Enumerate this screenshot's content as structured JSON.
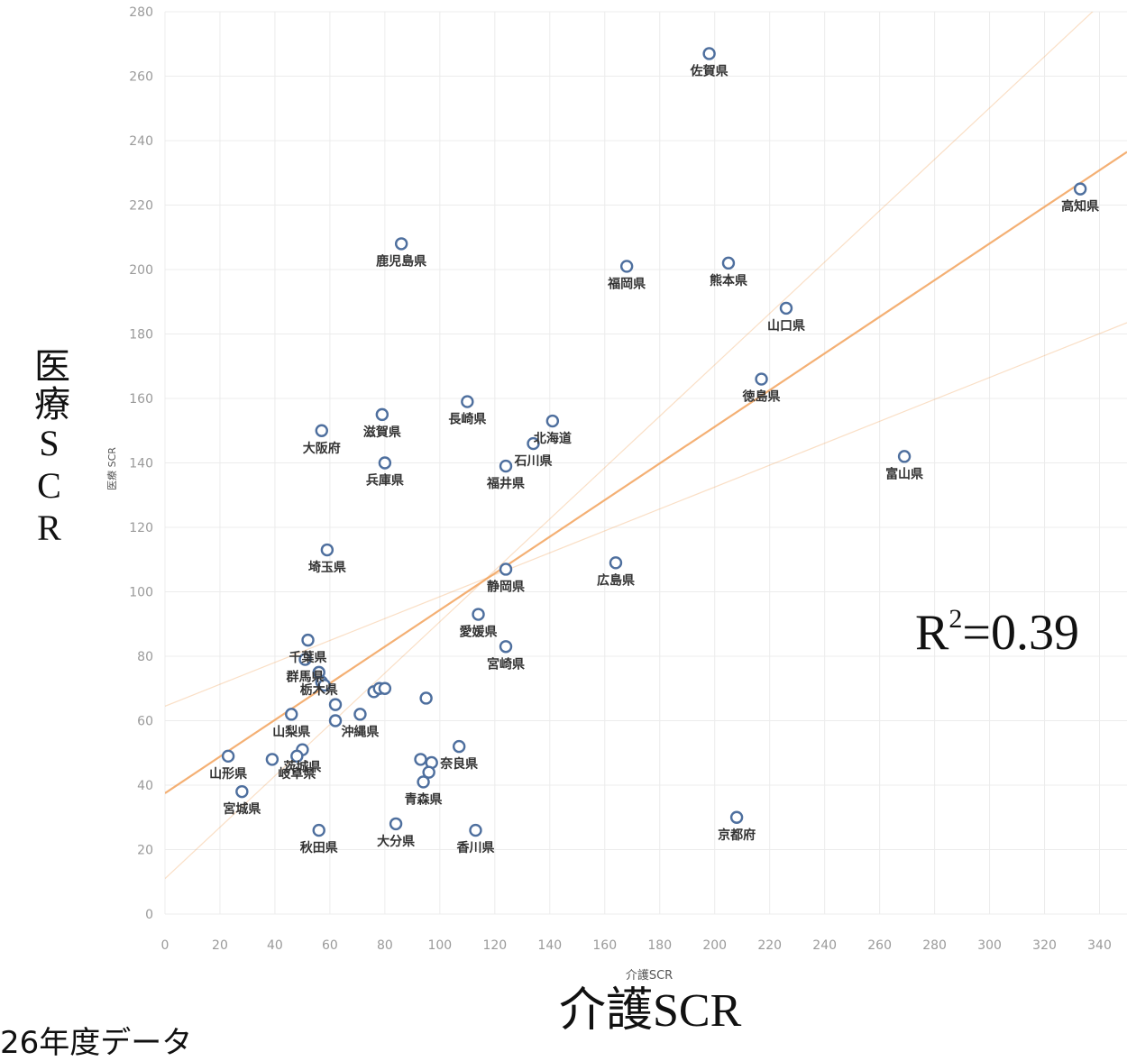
{
  "chart_data": {
    "type": "scatter",
    "xlabel": "介護SCR",
    "ylabel": "医療 SCR",
    "xlim": [
      0,
      350
    ],
    "ylim": [
      0,
      280
    ],
    "x_ticks": [
      0,
      20,
      40,
      60,
      80,
      100,
      120,
      140,
      160,
      180,
      200,
      220,
      240,
      260,
      280,
      300,
      320,
      340
    ],
    "y_ticks": [
      0,
      20,
      40,
      60,
      80,
      100,
      120,
      140,
      160,
      180,
      200,
      220,
      240,
      260,
      280
    ],
    "grid": true,
    "marker_color": "#4e6f9e",
    "trend_color": "#f2a25c",
    "points": [
      {
        "label": "佐賀県",
        "x": 198,
        "y": 267
      },
      {
        "label": "高知県",
        "x": 333,
        "y": 225
      },
      {
        "label": "鹿児島県",
        "x": 86,
        "y": 208
      },
      {
        "label": "福岡県",
        "x": 168,
        "y": 201
      },
      {
        "label": "熊本県",
        "x": 205,
        "y": 202
      },
      {
        "label": "山口県",
        "x": 226,
        "y": 188
      },
      {
        "label": "徳島県",
        "x": 217,
        "y": 166
      },
      {
        "label": "長崎県",
        "x": 110,
        "y": 159
      },
      {
        "label": "北海道",
        "x": 141,
        "y": 153
      },
      {
        "label": "滋賀県",
        "x": 79,
        "y": 155
      },
      {
        "label": "大阪府",
        "x": 57,
        "y": 150
      },
      {
        "label": "石川県",
        "x": 134,
        "y": 146
      },
      {
        "label": "富山県",
        "x": 269,
        "y": 142
      },
      {
        "label": "兵庫県",
        "x": 80,
        "y": 140
      },
      {
        "label": "福井県",
        "x": 124,
        "y": 139
      },
      {
        "label": "埼玉県",
        "x": 59,
        "y": 113
      },
      {
        "label": "広島県",
        "x": 164,
        "y": 109
      },
      {
        "label": "静岡県",
        "x": 124,
        "y": 107
      },
      {
        "label": "愛媛県",
        "x": 114,
        "y": 93
      },
      {
        "label": "千葉県",
        "x": 52,
        "y": 85
      },
      {
        "label": "宮崎県",
        "x": 124,
        "y": 83
      },
      {
        "label": "群馬県",
        "x": 51,
        "y": 79
      },
      {
        "label": "栃木県",
        "x": 56,
        "y": 75
      },
      {
        "label": "",
        "x": 57,
        "y": 72
      },
      {
        "label": "",
        "x": 58,
        "y": 71
      },
      {
        "label": "",
        "x": 76,
        "y": 69
      },
      {
        "label": "",
        "x": 78,
        "y": 70
      },
      {
        "label": "",
        "x": 80,
        "y": 70
      },
      {
        "label": "",
        "x": 95,
        "y": 67
      },
      {
        "label": "",
        "x": 62,
        "y": 65
      },
      {
        "label": "沖縄県",
        "x": 71,
        "y": 62
      },
      {
        "label": "山梨県",
        "x": 46,
        "y": 62
      },
      {
        "label": "",
        "x": 62,
        "y": 60
      },
      {
        "label": "奈良県",
        "x": 107,
        "y": 52
      },
      {
        "label": "茨城県",
        "x": 50,
        "y": 51
      },
      {
        "label": "山形県",
        "x": 23,
        "y": 49
      },
      {
        "label": "",
        "x": 39,
        "y": 48
      },
      {
        "label": "岐阜県",
        "x": 48,
        "y": 49
      },
      {
        "label": "",
        "x": 93,
        "y": 48
      },
      {
        "label": "",
        "x": 97,
        "y": 47
      },
      {
        "label": "",
        "x": 96,
        "y": 44
      },
      {
        "label": "青森県",
        "x": 94,
        "y": 41
      },
      {
        "label": "宮城県",
        "x": 28,
        "y": 38
      },
      {
        "label": "京都府",
        "x": 208,
        "y": 30
      },
      {
        "label": "大分県",
        "x": 84,
        "y": 28
      },
      {
        "label": "秋田県",
        "x": 56,
        "y": 26
      },
      {
        "label": "香川県",
        "x": 113,
        "y": 26
      }
    ],
    "trend_lines": [
      {
        "x": [
          0,
          350
        ],
        "y": [
          37.5,
          236.5
        ]
      },
      {
        "x": [
          0,
          350
        ],
        "y": [
          11,
          290
        ]
      },
      {
        "x": [
          0,
          350
        ],
        "y": [
          64.5,
          183.5
        ]
      }
    ]
  },
  "annotations": {
    "big_ylabel": "医療SCR",
    "big_xlabel": "介護SCR",
    "r2_prefix": "R",
    "r2_sup": "2",
    "r2_value": "=0.39",
    "footnote": "26年度データ"
  }
}
